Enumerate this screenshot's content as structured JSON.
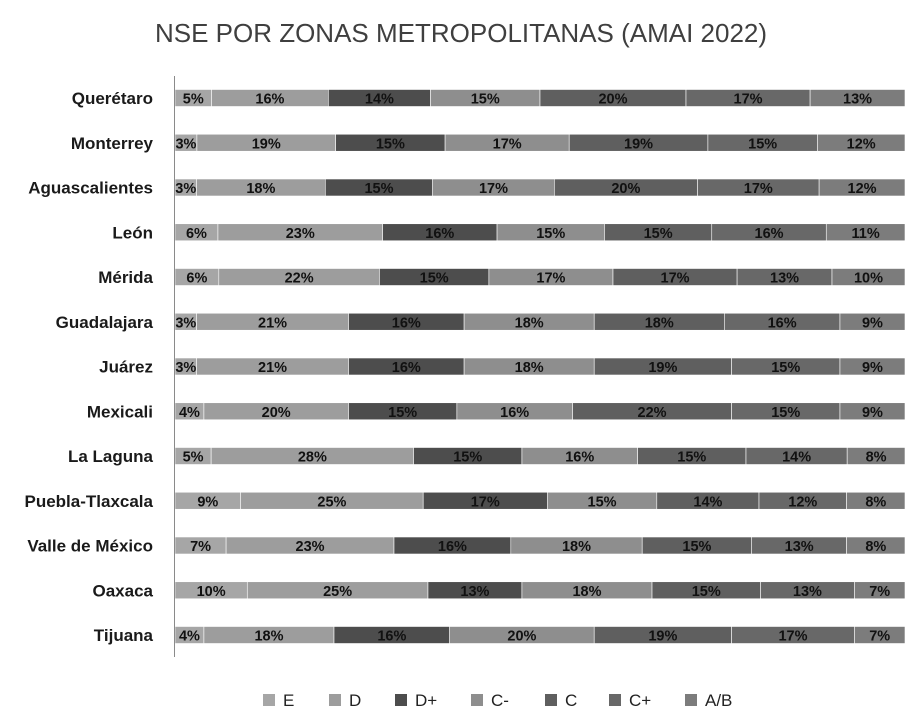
{
  "chart_data": {
    "type": "bar",
    "orientation": "horizontal",
    "stacked": true,
    "title": "NSE POR ZONAS METROPOLITANAS (AMAI 2022)",
    "xlabel": "",
    "ylabel": "",
    "xlim": [
      0,
      100
    ],
    "grid": false,
    "legend_position": "bottom",
    "value_suffix": "%",
    "categories": [
      "Querétaro",
      "Monterrey",
      "Aguascalientes",
      "León",
      "Mérida",
      "Guadalajara",
      "Juárez",
      "Mexicali",
      "La Laguna",
      "Puebla-Tlaxcala",
      "Valle de México",
      "Oaxaca",
      "Tijuana"
    ],
    "series": [
      {
        "name": "E",
        "color": "#a6a6a6",
        "values": [
          5,
          3,
          3,
          6,
          6,
          3,
          3,
          4,
          5,
          9,
          7,
          10,
          4
        ]
      },
      {
        "name": "D",
        "color": "#9d9d9d",
        "values": [
          16,
          19,
          18,
          23,
          22,
          21,
          21,
          20,
          28,
          25,
          23,
          25,
          18
        ]
      },
      {
        "name": "D+",
        "color": "#4d4d4d",
        "values": [
          14,
          15,
          15,
          16,
          15,
          16,
          16,
          15,
          15,
          17,
          16,
          13,
          16
        ]
      },
      {
        "name": "C-",
        "color": "#8e8e8e",
        "values": [
          15,
          17,
          17,
          15,
          17,
          18,
          18,
          16,
          16,
          15,
          18,
          18,
          20
        ]
      },
      {
        "name": "C",
        "color": "#5f5f5f",
        "values": [
          20,
          19,
          20,
          15,
          17,
          18,
          19,
          22,
          15,
          14,
          15,
          15,
          19
        ]
      },
      {
        "name": "C+",
        "color": "#686868",
        "values": [
          17,
          15,
          17,
          16,
          13,
          16,
          15,
          15,
          14,
          12,
          13,
          13,
          17
        ]
      },
      {
        "name": "A/B",
        "color": "#7c7c7c",
        "values": [
          13,
          12,
          12,
          11,
          10,
          9,
          9,
          9,
          8,
          8,
          8,
          7,
          7
        ]
      }
    ]
  }
}
